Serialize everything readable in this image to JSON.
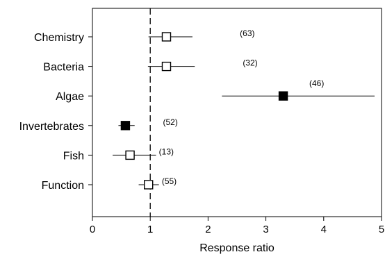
{
  "chart_data": {
    "type": "scatter",
    "title": "",
    "xlabel": "Response ratio",
    "ylabel": "",
    "xlim": [
      0,
      5
    ],
    "xticks": [
      0,
      1,
      2,
      3,
      4,
      5
    ],
    "reference_line": {
      "x": 1,
      "style": "dashed"
    },
    "grid": false,
    "legend": "none",
    "categories": [
      "Chemistry",
      "Bacteria",
      "Algae",
      "Invertebrates",
      "Fish",
      "Function"
    ],
    "points": [
      {
        "category": "Chemistry",
        "value": 1.28,
        "ci_low": 0.97,
        "ci_high": 1.73,
        "n_label": "(63)",
        "n_label_x": 2.55,
        "filled": false
      },
      {
        "category": "Bacteria",
        "value": 1.28,
        "ci_low": 0.96,
        "ci_high": 1.77,
        "n_label": "(32)",
        "n_label_x": 2.6,
        "filled": false
      },
      {
        "category": "Algae",
        "value": 3.3,
        "ci_low": 2.24,
        "ci_high": 4.88,
        "n_label": "(46)",
        "n_label_x": 3.75,
        "filled": true
      },
      {
        "category": "Invertebrates",
        "value": 0.57,
        "ci_low": 0.45,
        "ci_high": 0.73,
        "n_label": "(52)",
        "n_label_x": 1.22,
        "filled": true
      },
      {
        "category": "Fish",
        "value": 0.65,
        "ci_low": 0.35,
        "ci_high": 1.1,
        "n_label": "(13)",
        "n_label_x": 1.15,
        "filled": false
      },
      {
        "category": "Function",
        "value": 0.97,
        "ci_low": 0.8,
        "ci_high": 1.15,
        "n_label": "(55)",
        "n_label_x": 1.2,
        "filled": false
      }
    ],
    "colors": {
      "marker_fill": "#000000",
      "marker_open": "#ffffff",
      "line": "#000000"
    }
  }
}
